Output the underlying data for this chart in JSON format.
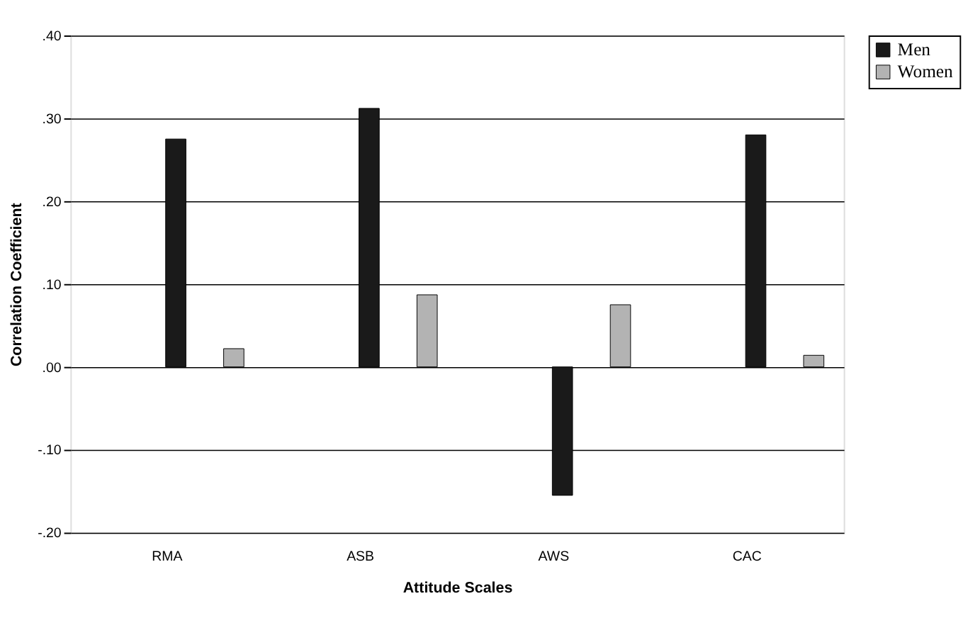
{
  "chart_data": {
    "type": "bar",
    "xlabel": "Attitude Scales",
    "ylabel": "Correlation Coefficient",
    "categories": [
      "RMA",
      "ASB",
      "AWS",
      "CAC"
    ],
    "series": [
      {
        "name": "Men",
        "color": "#1a1a1a",
        "values": [
          0.275,
          0.312,
          -0.155,
          0.28
        ]
      },
      {
        "name": "Women",
        "color": "#b3b3b3",
        "values": [
          0.022,
          0.087,
          0.075,
          0.014
        ]
      }
    ],
    "ylim": [
      -0.2,
      0.4
    ],
    "yticks": [
      {
        "value": -0.2,
        "label": "-.20"
      },
      {
        "value": -0.1,
        "label": "-.10"
      },
      {
        "value": 0,
        "label": ".00"
      },
      {
        "value": 0.1,
        "label": ".10"
      },
      {
        "value": 0.2,
        "label": ".20"
      },
      {
        "value": 0.3,
        "label": ".30"
      },
      {
        "value": 0.4,
        "label": ".40"
      }
    ],
    "grid": "y",
    "legend": "right"
  }
}
